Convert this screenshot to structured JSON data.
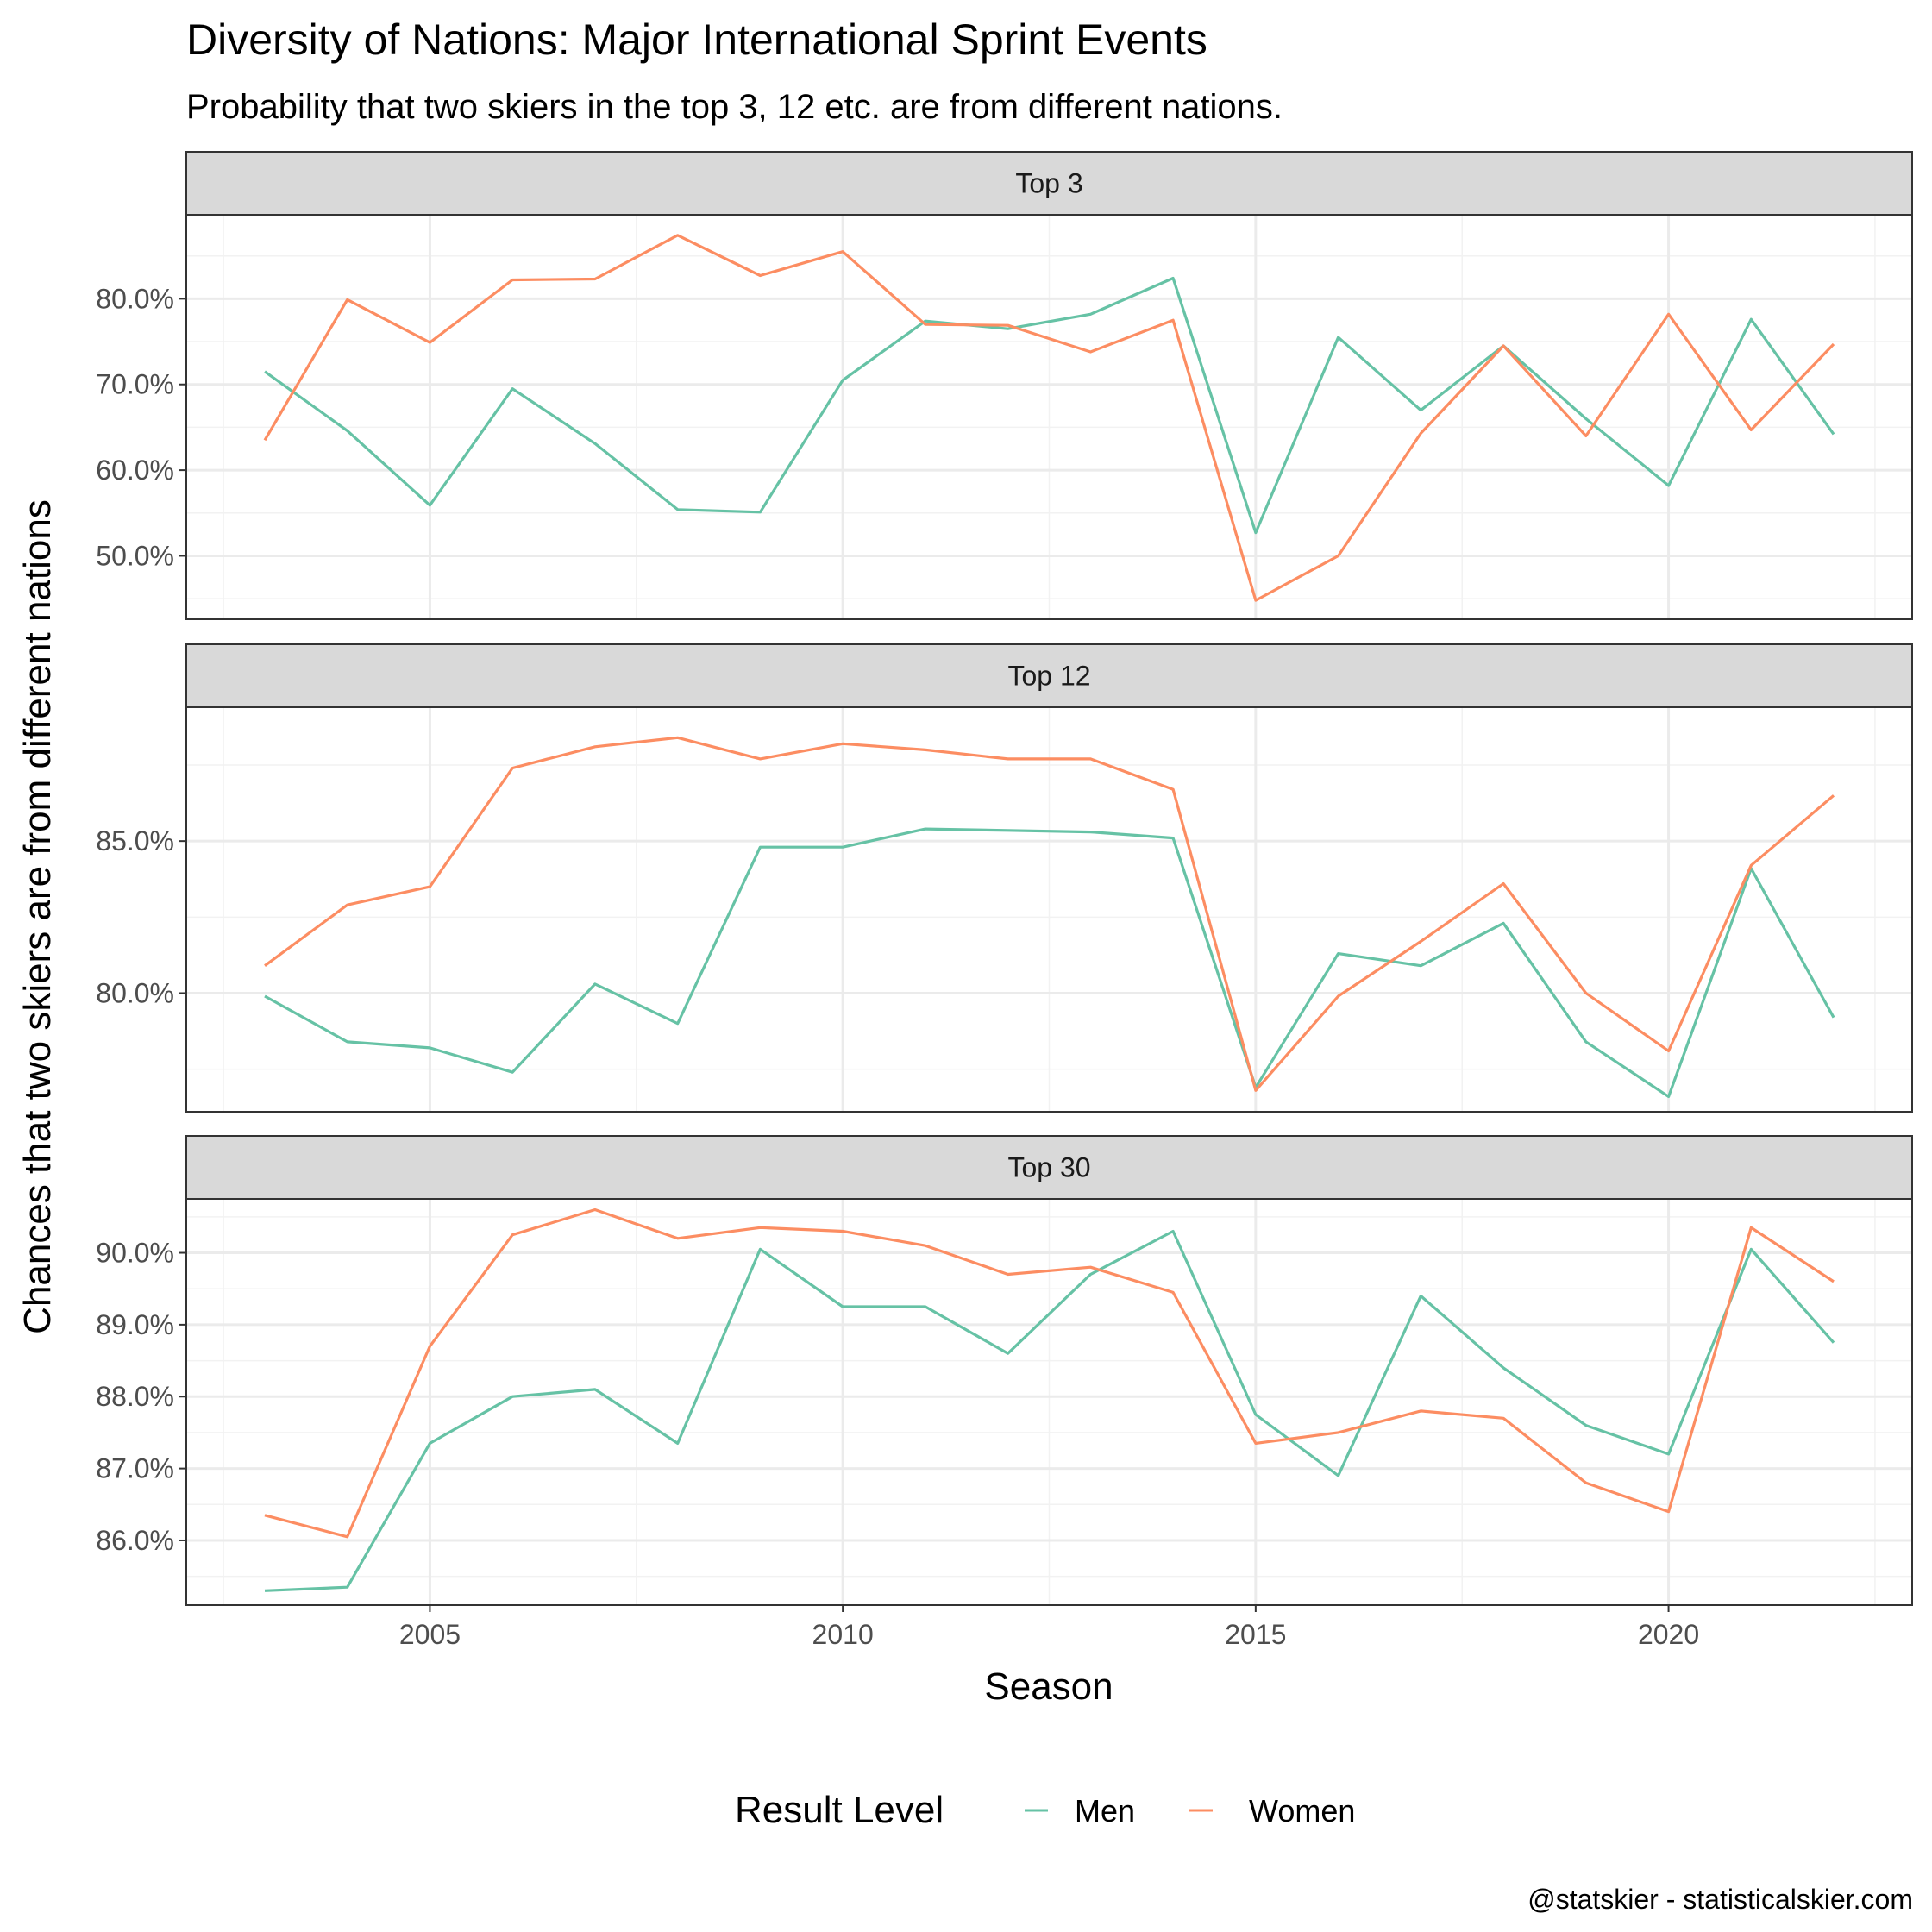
{
  "chart_data": {
    "type": "line",
    "title": "Diversity of Nations: Major International Sprint Events",
    "subtitle": "Probability that two skiers in the top 3, 12 etc. are from different nations.",
    "xlabel": "Season",
    "ylabel": "Chances that two skiers are from different nations",
    "caption": "@statskier - statisticalskier.com",
    "x": [
      2003,
      2004,
      2005,
      2006,
      2007,
      2008,
      2009,
      2010,
      2011,
      2012,
      2013,
      2014,
      2015,
      2016,
      2017,
      2018,
      2019,
      2020,
      2021,
      2022
    ],
    "xlim": [
      2002.05,
      2022.95
    ],
    "x_ticks": [
      2005,
      2010,
      2015,
      2020
    ],
    "x_tick_labels": [
      "2005",
      "2010",
      "2015",
      "2020"
    ],
    "legend": {
      "title": "Result Level",
      "position": "bottom",
      "entries": [
        {
          "name": "Men",
          "color": "#66c2a5"
        },
        {
          "name": "Women",
          "color": "#fc8d62"
        }
      ]
    },
    "panels": [
      {
        "label": "Top 3",
        "ylim": [
          42.6,
          89.8
        ],
        "y_ticks": [
          50,
          60,
          70,
          80
        ],
        "y_tick_labels": [
          "50.0%",
          "60.0%",
          "70.0%",
          "80.0%"
        ],
        "series": [
          {
            "name": "Men",
            "color": "#66c2a5",
            "values": [
              71.5,
              64.6,
              55.9,
              69.5,
              63.1,
              55.4,
              55.1,
              70.5,
              77.4,
              76.5,
              78.2,
              82.4,
              52.7,
              75.5,
              67.0,
              74.5,
              66.0,
              58.2,
              77.6,
              64.2
            ]
          },
          {
            "name": "Women",
            "color": "#fc8d62",
            "values": [
              63.5,
              79.9,
              74.9,
              82.2,
              82.3,
              87.4,
              82.7,
              85.5,
              77.0,
              76.9,
              73.8,
              77.5,
              44.8,
              50.0,
              64.3,
              74.5,
              64.0,
              78.2,
              64.7,
              74.7
            ]
          }
        ]
      },
      {
        "label": "Top 12",
        "ylim": [
          76.1,
          89.4
        ],
        "y_ticks": [
          80,
          85
        ],
        "y_tick_labels": [
          "80.0%",
          "85.0%"
        ],
        "series": [
          {
            "name": "Men",
            "color": "#66c2a5",
            "values": [
              79.9,
              78.4,
              78.2,
              77.4,
              80.3,
              79.0,
              84.8,
              84.8,
              85.4,
              85.35,
              85.3,
              85.1,
              76.9,
              81.3,
              80.9,
              82.3,
              78.4,
              76.6,
              84.1,
              79.2
            ]
          },
          {
            "name": "Women",
            "color": "#fc8d62",
            "values": [
              80.9,
              82.9,
              83.5,
              87.4,
              88.1,
              88.4,
              87.7,
              88.2,
              88.0,
              87.7,
              87.7,
              86.7,
              76.8,
              79.9,
              81.7,
              83.6,
              80.0,
              78.1,
              84.2,
              86.5
            ]
          }
        ]
      },
      {
        "label": "Top 30",
        "ylim": [
          85.1,
          90.75
        ],
        "y_ticks": [
          86,
          87,
          88,
          89,
          90
        ],
        "y_tick_labels": [
          "86.0%",
          "87.0%",
          "88.0%",
          "89.0%",
          "90.0%"
        ],
        "series": [
          {
            "name": "Men",
            "color": "#66c2a5",
            "values": [
              85.3,
              85.35,
              87.35,
              88.0,
              88.1,
              87.35,
              90.05,
              89.25,
              89.25,
              88.6,
              89.7,
              90.3,
              87.75,
              86.9,
              89.4,
              88.4,
              87.6,
              87.2,
              90.05,
              88.75
            ]
          },
          {
            "name": "Women",
            "color": "#fc8d62",
            "values": [
              86.35,
              86.05,
              88.7,
              90.25,
              90.6,
              90.2,
              90.35,
              90.3,
              90.1,
              89.7,
              89.8,
              89.45,
              87.35,
              87.5,
              87.8,
              87.7,
              86.8,
              86.4,
              90.35,
              89.6
            ]
          }
        ]
      }
    ]
  }
}
